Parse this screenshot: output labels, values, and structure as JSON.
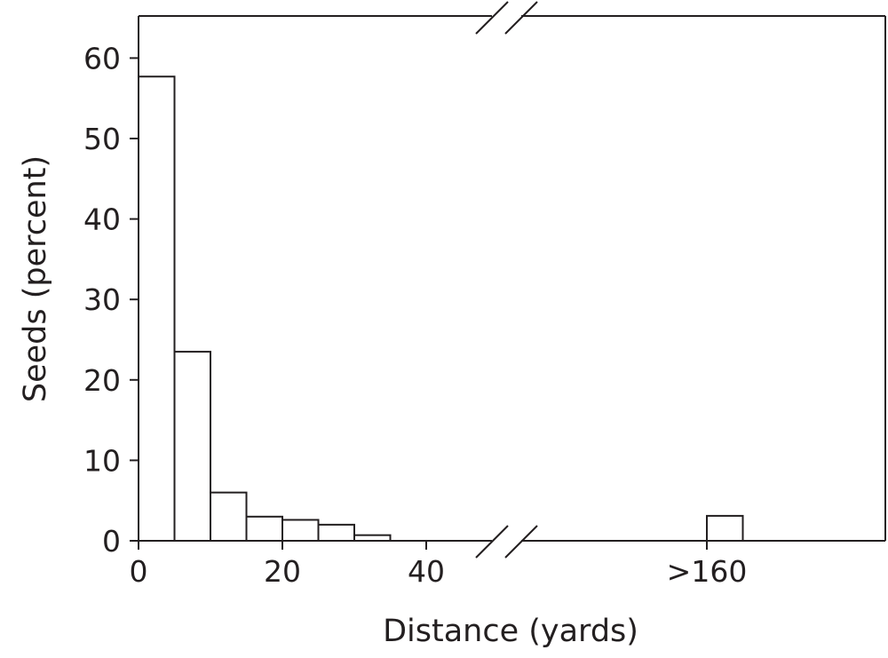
{
  "chart_data": {
    "type": "bar",
    "title": "",
    "xlabel": "Distance (yards)",
    "ylabel": "Seeds (percent)",
    "ylim": [
      0,
      65
    ],
    "y_ticks": [
      0,
      10,
      20,
      30,
      40,
      50,
      60
    ],
    "x_ticks": [
      {
        "value": 0,
        "label": "0"
      },
      {
        "value": 20,
        "label": "20"
      },
      {
        "value": 40,
        "label": "40"
      },
      {
        "value": 160,
        "label": ">160"
      }
    ],
    "x_break": true,
    "grid": false,
    "bars": [
      {
        "x0": 0,
        "x1": 5,
        "value": 57.7
      },
      {
        "x0": 5,
        "x1": 10,
        "value": 23.5
      },
      {
        "x0": 10,
        "x1": 15,
        "value": 6.0
      },
      {
        "x0": 15,
        "x1": 20,
        "value": 3.0
      },
      {
        "x0": 20,
        "x1": 25,
        "value": 2.6
      },
      {
        "x0": 25,
        "x1": 30,
        "value": 2.0
      },
      {
        "x0": 30,
        "x1": 35,
        "value": 0.7
      },
      {
        "x0": 160,
        "x1": 165,
        "value": 3.1
      }
    ]
  }
}
